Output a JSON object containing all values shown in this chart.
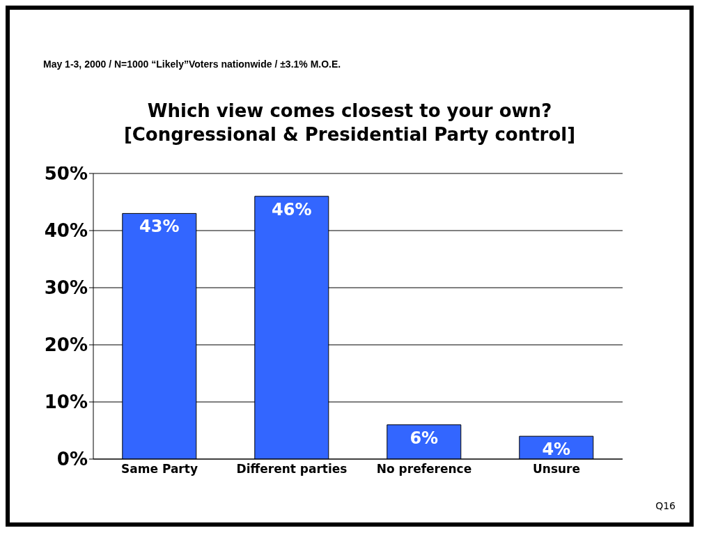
{
  "chart_data": {
    "type": "bar",
    "title": "Which view comes closest to your own?\n[Congressional & Presidential Party control]",
    "categories": [
      "Same Party",
      "Different parties",
      "No preference",
      "Unsure"
    ],
    "values": [
      43,
      46,
      6,
      4
    ],
    "color": "#3366ff",
    "value_labels": [
      "43%",
      "46%",
      "6%",
      "4%"
    ],
    "ylim": [
      0,
      50
    ],
    "yticks": [
      {
        "value": 0,
        "label": "0%"
      },
      {
        "value": 10,
        "label": "10%"
      },
      {
        "value": 20,
        "label": "20%"
      },
      {
        "value": 30,
        "label": "30%"
      },
      {
        "value": 40,
        "label": "40%"
      },
      {
        "value": 50,
        "label": "50%"
      }
    ],
    "grid": "y",
    "annotations": [
      "May 1-3, 2000 / N=1000  “Likely”Voters nationwide / ±3.1% M.O.E.",
      "Q16"
    ]
  }
}
